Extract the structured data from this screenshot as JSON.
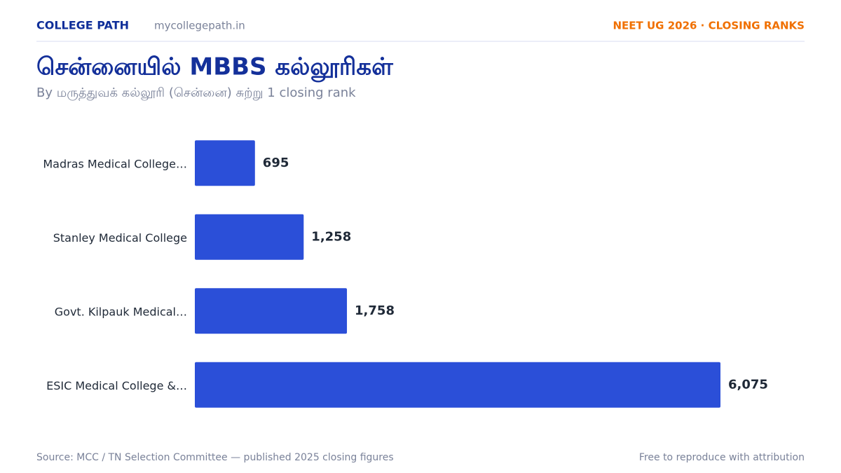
{
  "header": {
    "brand": "COLLEGE PATH",
    "site": "mycollegepath.in",
    "tag": "NEET UG 2026 · CLOSING RANKS"
  },
  "chart_data": {
    "type": "bar",
    "orientation": "horizontal",
    "title": "சென்னையில் MBBS கல்லூரிகள்",
    "subtitle": "By மருத்துவக் கல்லூரி (சென்னை) சுற்று 1 closing rank",
    "categories": [
      "Madras Medical College…",
      "Stanley Medical College",
      "Govt. Kilpauk Medical…",
      "ESIC Medical College &…"
    ],
    "values": [
      695,
      1258,
      1758,
      6075
    ],
    "value_labels": [
      "695",
      "1,258",
      "1,758",
      "6,075"
    ],
    "color": "#2b4fd8"
  },
  "footer": {
    "source": "Source: MCC / TN Selection Committee — published 2025 closing figures",
    "note": "Free to reproduce with attribution"
  }
}
